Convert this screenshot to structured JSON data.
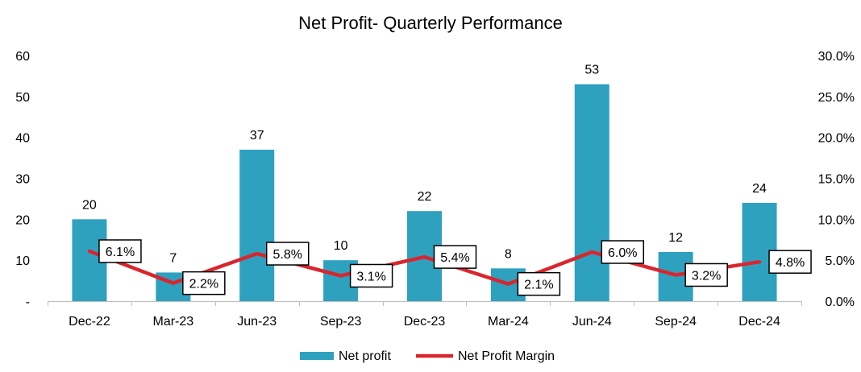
{
  "chart_data": {
    "type": "bar+line",
    "title": "Net Profit- Quarterly Performance",
    "categories": [
      "Dec-22",
      "Mar-23",
      "Jun-23",
      "Sep-23",
      "Dec-23",
      "Mar-24",
      "Jun-24",
      "Sep-24",
      "Dec-24"
    ],
    "series": [
      {
        "name": "Net profit",
        "type": "bar",
        "axis": "left",
        "color": "#2ea1bf",
        "values": [
          20,
          7,
          37,
          10,
          22,
          8,
          53,
          12,
          24
        ],
        "labels": [
          "20",
          "7",
          "37",
          "10",
          "22",
          "8",
          "53",
          "12",
          "24"
        ]
      },
      {
        "name": "Net Profit Margin",
        "type": "line",
        "axis": "right",
        "color": "#d9262e",
        "values": [
          6.1,
          2.2,
          5.8,
          3.1,
          5.4,
          2.1,
          6.0,
          3.2,
          4.8
        ],
        "labels": [
          "6.1%",
          "2.2%",
          "5.8%",
          "3.1%",
          "5.4%",
          "2.1%",
          "6.0%",
          "3.2%",
          "4.8%"
        ]
      }
    ],
    "y_left": {
      "min": 0,
      "max": 60,
      "step": 10,
      "tick_labels": [
        "-",
        "10",
        "20",
        "30",
        "40",
        "50",
        "60"
      ]
    },
    "y_right": {
      "min": 0,
      "max": 30,
      "step": 5,
      "tick_labels": [
        "0.0%",
        "5.0%",
        "10.0%",
        "15.0%",
        "20.0%",
        "25.0%",
        "30.0%"
      ]
    },
    "grid": false,
    "legend": "bottom-center",
    "legend_items": [
      "Net profit",
      "Net Profit Margin"
    ]
  }
}
